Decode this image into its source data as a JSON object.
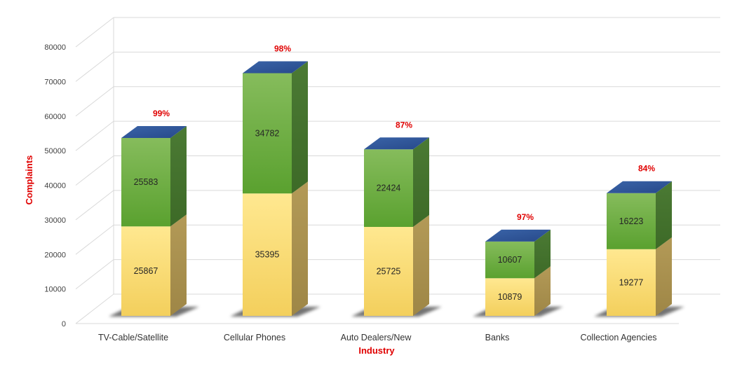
{
  "chart_data": {
    "type": "bar",
    "stacked": true,
    "three_d": true,
    "title": "",
    "xlabel": "Industry",
    "ylabel": "Complaints",
    "ylim": [
      0,
      80000
    ],
    "yticks": [
      "0",
      "10000",
      "20000",
      "30000",
      "40000",
      "50000",
      "60000",
      "70000",
      "80000"
    ],
    "categories": [
      "TV-Cable/Satellite",
      "Cellular Phones",
      "Auto Dealers/New",
      "Banks",
      "Collection Agencies"
    ],
    "series": [
      {
        "values": [
          25867,
          35395,
          25725,
          10879,
          19277
        ],
        "color": "#ffe082"
      },
      {
        "values": [
          25583,
          34782,
          22424,
          10607,
          16223
        ],
        "color": "#6aaa3c"
      }
    ],
    "top_labels": [
      "99%",
      "98%",
      "87%",
      "97%",
      "84%"
    ],
    "top_cap_color": "#2e5597",
    "top_label_color": "#e00000",
    "grid": true,
    "legend": "none"
  }
}
